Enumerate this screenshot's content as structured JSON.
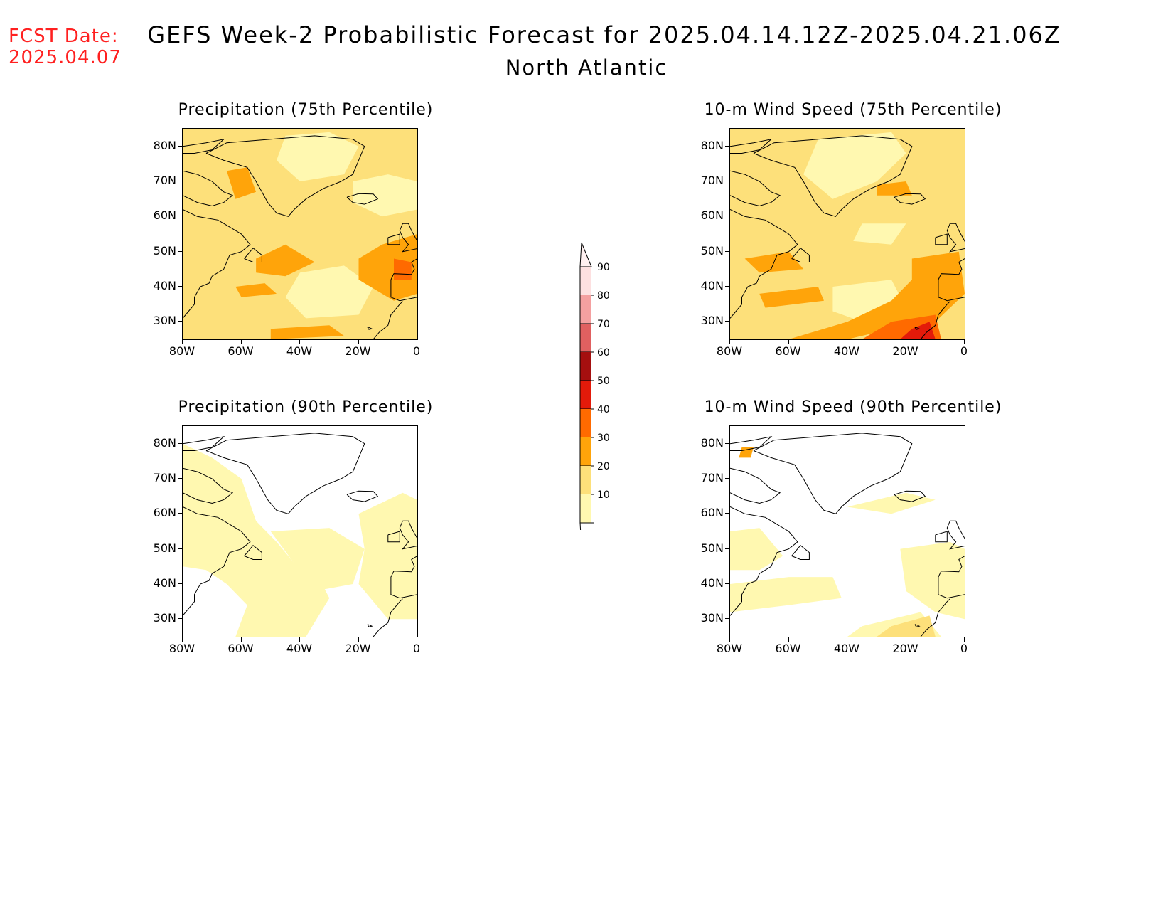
{
  "header": {
    "fcst_label": "FCST Date:",
    "fcst_date": "2025.04.07",
    "title": "GEFS Week-2 Probabilistic Forecast for 2025.04.14.12Z-2025.04.21.06Z",
    "subtitle": "North Atlantic"
  },
  "axes": {
    "lat_labels": [
      "80N",
      "70N",
      "60N",
      "50N",
      "40N",
      "30N"
    ],
    "lon_labels": [
      "80W",
      "60W",
      "40W",
      "20W",
      "0"
    ],
    "lat_values": [
      80,
      70,
      60,
      50,
      40,
      30
    ],
    "lon_values": [
      -80,
      -60,
      -40,
      -20,
      0
    ],
    "lat_range": [
      25,
      85
    ],
    "lon_range": [
      -80,
      0
    ]
  },
  "panels": [
    {
      "id": "precip75",
      "title": "Precipitation (75th Percentile)"
    },
    {
      "id": "wind75",
      "title": "10-m Wind Speed (75th Percentile)"
    },
    {
      "id": "precip90",
      "title": "Precipitation (90th Percentile)"
    },
    {
      "id": "wind90",
      "title": "10-m Wind Speed (90th Percentile)"
    }
  ],
  "colorbar": {
    "labels": [
      "90",
      "80",
      "70",
      "60",
      "50",
      "40",
      "30",
      "20",
      "10"
    ],
    "levels": [
      90,
      80,
      70,
      60,
      50,
      40,
      30,
      20,
      10
    ],
    "colors": [
      "#fde0e0",
      "#f4a0a0",
      "#e06060",
      "#a50f0f",
      "#e31a0a",
      "#ff6a00",
      "#ffa40a",
      "#fde07a",
      "#fff8b0"
    ]
  }
}
